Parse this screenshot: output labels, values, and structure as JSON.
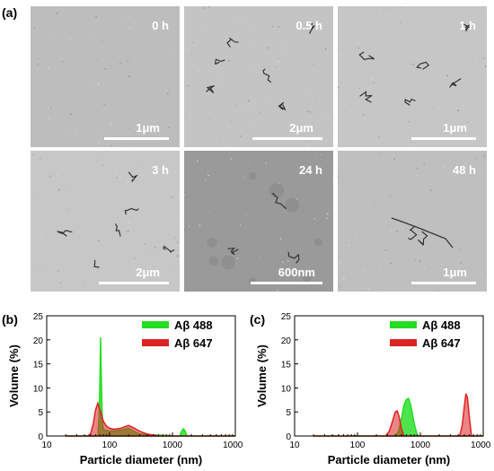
{
  "panels": {
    "a": "(a)",
    "b": "(b)",
    "c": "(c)"
  },
  "micrographs": [
    {
      "time": "0 h",
      "scale": "1μm",
      "tone": "#bdbdbd"
    },
    {
      "time": "0.5 h",
      "scale": "2μm",
      "tone": "#c4c4c4"
    },
    {
      "time": "1 h",
      "scale": "1μm",
      "tone": "#c6c6c6"
    },
    {
      "time": "3 h",
      "scale": "2μm",
      "tone": "#c7c7c7"
    },
    {
      "time": "24 h",
      "scale": "600nm",
      "tone": "#9a9a9a"
    },
    {
      "time": "48 h",
      "scale": "1μm",
      "tone": "#bfbfbf"
    }
  ],
  "chart_data": [
    {
      "panel": "(b)",
      "type": "area",
      "xscale": "log",
      "xlim": [
        10,
        10000
      ],
      "ylim": [
        0,
        25
      ],
      "xlabel": "Particle diameter (nm)",
      "ylabel": "Volume (%)",
      "x_ticks": [
        "10",
        "100",
        "1000",
        "10000"
      ],
      "y_ticks": [
        "0",
        "5",
        "10",
        "15",
        "20",
        "25"
      ],
      "legend_position": "top-right",
      "series": [
        {
          "name": "Aβ 488",
          "color": "#22dd22",
          "x": [
            20,
            60,
            65,
            68,
            70,
            72,
            74,
            76,
            78,
            80,
            85,
            100,
            150,
            200,
            300,
            1000,
            1300,
            1400,
            1500,
            1600,
            1700,
            2000,
            10000
          ],
          "y": [
            0,
            0,
            0,
            4,
            11,
            20.5,
            12,
            5,
            2.5,
            1.5,
            1.2,
            1.0,
            1.2,
            1.6,
            0.4,
            0,
            0,
            1.0,
            1.5,
            1.0,
            0,
            0,
            0
          ]
        },
        {
          "name": "Aβ 647",
          "color": "#dd2222",
          "x": [
            20,
            45,
            50,
            55,
            60,
            65,
            70,
            80,
            90,
            100,
            120,
            150,
            200,
            250,
            300,
            400,
            600,
            1000,
            10000
          ],
          "y": [
            0,
            0,
            0.5,
            2.5,
            5.5,
            6.8,
            5.5,
            3.0,
            2.0,
            1.6,
            1.4,
            1.6,
            2.2,
            1.6,
            1.0,
            0.4,
            0,
            0,
            0
          ]
        }
      ]
    },
    {
      "panel": "(c)",
      "type": "area",
      "xscale": "log",
      "xlim": [
        10,
        10000
      ],
      "ylim": [
        0,
        25
      ],
      "xlabel": "Particle diameter (nm)",
      "ylabel": "Volume (%)",
      "x_ticks": [
        "10",
        "100",
        "1000",
        "10000"
      ],
      "y_ticks": [
        "0",
        "5",
        "10",
        "15",
        "20",
        "25"
      ],
      "legend_position": "top-right",
      "series": [
        {
          "name": "Aβ 488",
          "color": "#22dd22",
          "x": [
            20,
            400,
            450,
            500,
            550,
            600,
            650,
            700,
            750,
            800,
            900,
            10000
          ],
          "y": [
            0,
            0,
            1.0,
            3.5,
            6.5,
            7.6,
            7.8,
            6.5,
            4.5,
            2.5,
            0,
            0
          ]
        },
        {
          "name": "Aβ 647",
          "color": "#dd2222",
          "x": [
            20,
            280,
            320,
            360,
            400,
            430,
            460,
            500,
            550,
            4200,
            4600,
            5000,
            5300,
            5600,
            6000,
            6500,
            10000
          ],
          "y": [
            0,
            0,
            1.0,
            3.0,
            5.0,
            5.2,
            4.0,
            1.5,
            0,
            0,
            2.0,
            6.0,
            8.8,
            8.0,
            4.0,
            0,
            0
          ]
        }
      ]
    }
  ]
}
